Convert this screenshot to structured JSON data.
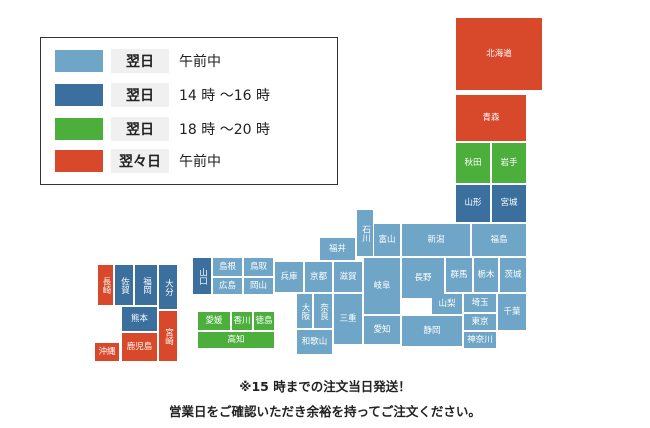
{
  "colors": {
    "next_morning": "#6fa6c7",
    "next_14_16": "#3a6f9e",
    "next_18_20": "#4caf3c",
    "day_after_morning": "#d8492b"
  },
  "legend": [
    {
      "tag": "翌日",
      "text": "午前中"
    },
    {
      "tag": "翌日",
      "text": "14 時 〜16 時"
    },
    {
      "tag": "翌日",
      "text": "18 時 〜20 時"
    },
    {
      "tag": "翌々日",
      "text": "午前中"
    }
  ],
  "prefectures": {
    "hokkaido": "北海道",
    "aomori": "青森",
    "akita": "秋田",
    "iwate": "岩手",
    "yamagata": "山形",
    "miyagi": "宮城",
    "fukushima": "福島",
    "niigata": "新潟",
    "toyama": "富山",
    "ishikawa": "石川",
    "fukui": "福井",
    "nagano": "長野",
    "gunma": "群馬",
    "tochigi": "栃木",
    "ibaraki": "茨城",
    "saitama": "埼玉",
    "yamanashi": "山梨",
    "tokyo": "東京",
    "chiba": "千葉",
    "kanagawa": "神奈川",
    "shizuoka": "静岡",
    "aichi": "愛知",
    "gifu": "岐阜",
    "mie": "三重",
    "shiga": "滋賀",
    "kyoto": "京都",
    "osaka": "大阪",
    "nara": "奈良",
    "wakayama": "和歌山",
    "hyogo": "兵庫",
    "tottori": "鳥取",
    "shimane": "島根",
    "okayama": "岡山",
    "hiroshima": "広島",
    "yamaguchi": "山口",
    "kagawa": "香川",
    "ehime": "愛媛",
    "tokushima": "徳島",
    "kochi": "高知",
    "fukuoka": "福岡",
    "saga": "佐賀",
    "nagasaki": "長崎",
    "oita": "大分",
    "kumamoto": "熊本",
    "miyazaki": "宮崎",
    "kagoshima": "鹿児島",
    "okinawa": "沖縄"
  },
  "notes": {
    "line1": "※15 時までの注文当日発送！",
    "line2": "営業日をご確認いただき余裕を持ってご注文ください。"
  }
}
